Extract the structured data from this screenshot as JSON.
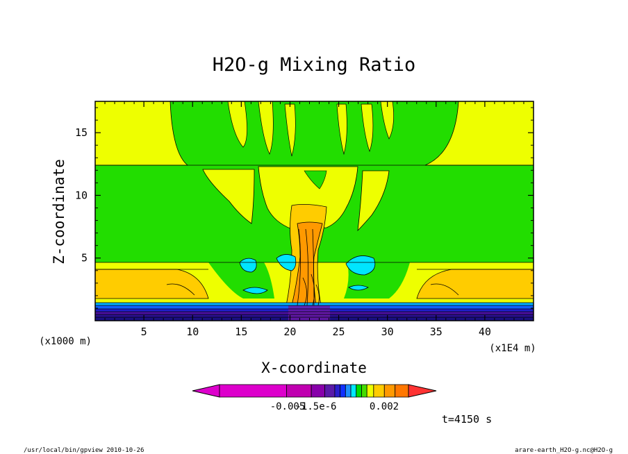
{
  "chart_data": {
    "type": "heatmap",
    "title": "H2O-g Mixing Ratio",
    "xlabel": "X-coordinate",
    "ylabel": "Z-coordinate",
    "x_unit": "(x1E4 m)",
    "y_unit": "(x1000 m)",
    "xlim": [
      0,
      45
    ],
    "ylim": [
      0,
      17.5
    ],
    "x_ticks": [
      "5",
      "10",
      "15",
      "20",
      "25",
      "30",
      "35",
      "40"
    ],
    "y_ticks": [
      "5",
      "10",
      "15"
    ],
    "colorbar_labels": [
      "-0.005",
      "-1.5e-6",
      "0.002"
    ],
    "colorbar_colors": [
      "#dd00cc",
      "#c000b0",
      "#8800aa",
      "#5a1aa8",
      "#2a1ecc",
      "#1030ff",
      "#1e90ff",
      "#00e8ff",
      "#00dd00",
      "#44dd00",
      "#eeff00",
      "#ffcc00",
      "#ff9900",
      "#ff7700",
      "#ff3333"
    ],
    "fields": {
      "upper_green": "#22dd00",
      "yellow": "#eeff00",
      "orange_low": "#ffcc00",
      "core": "#ff9900",
      "cyan": "#00e5ff",
      "surface_layers": [
        "#00b0ff",
        "#1060ff",
        "#2020cc",
        "#4a10a0",
        "#2a1090",
        "#1a1080"
      ]
    }
  },
  "time_label": "t=4150 s",
  "footer_left": "/usr/local/bin/gpview  2010-10-26",
  "footer_right": "arare-earth_H2O-g.nc@H2O-g"
}
